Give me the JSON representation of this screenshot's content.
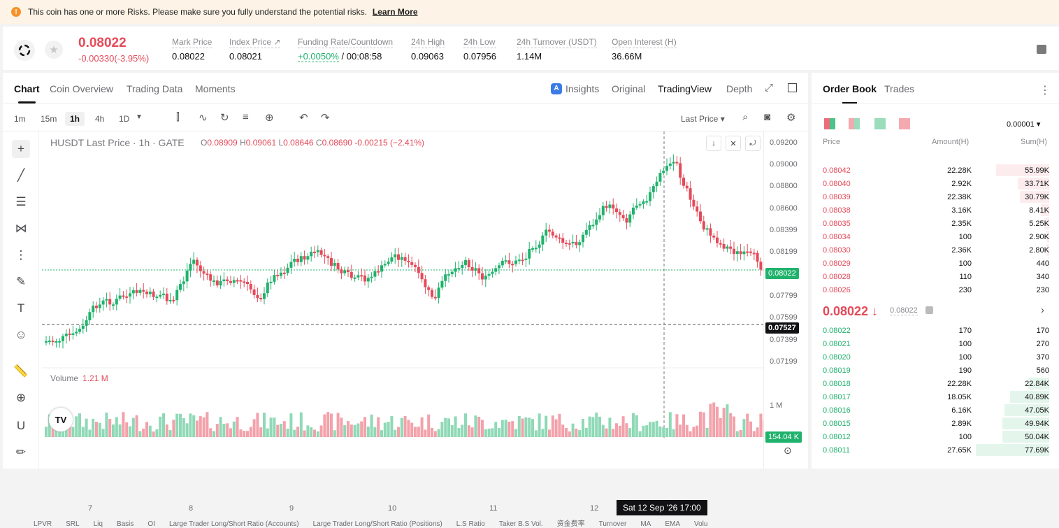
{
  "risk_banner": {
    "text": "This coin has one or more Risks. Please make sure you fully understand the potential risks.",
    "link": "Learn More"
  },
  "ticker": {
    "last_price": "0.08022",
    "change": "-0.00330(-3.95%)",
    "stats": [
      {
        "label": "Mark Price",
        "value": "0.08022"
      },
      {
        "label": "Index Price ↗",
        "value": "0.08021"
      },
      {
        "label": "Funding Rate/Countdown",
        "value": "+0.0050%",
        "value2": " / 00:08:58"
      },
      {
        "label": "24h High",
        "value": "0.09063"
      },
      {
        "label": "24h Low",
        "value": "0.07956"
      },
      {
        "label": "24h Turnover (USDT)",
        "value": "1.14M"
      },
      {
        "label": "Open Interest (H)",
        "value": "36.66M"
      }
    ]
  },
  "chart_tabs": [
    "Chart",
    "Coin Overview",
    "Trading Data",
    "Moments"
  ],
  "view_tabs": {
    "insights": "Insights",
    "original": "Original",
    "tradingview": "TradingView",
    "depth": "Depth"
  },
  "intervals": [
    "1m",
    "15m",
    "1h",
    "4h",
    "1D"
  ],
  "toolbar": {
    "price_type": "Last Price ▾"
  },
  "legend": {
    "title": "HUSDT Last Price · 1h · GATE",
    "o": "0.08909",
    "h": "0.09061",
    "l": "0.08646",
    "c": "0.08690",
    "chg": "-0.00215 (−2.41%)"
  },
  "y_axis": {
    "labels": [
      "0.09200",
      "0.09000",
      "0.08800",
      "0.08600",
      "0.08399",
      "0.08199",
      "0.07799",
      "0.07599",
      "0.07399",
      "0.07199"
    ],
    "last": "0.08022",
    "cross": "0.07527",
    "vol_label": "1 M",
    "vol_tag": "154.04 K"
  },
  "volume": {
    "label": "Volume",
    "value": "1.21 M"
  },
  "x_axis": {
    "labels": [
      "7",
      "8",
      "9",
      "10",
      "11",
      "12"
    ],
    "cross": "Sat 12 Sep '26   17:00"
  },
  "bottom_indicators": [
    "LPVR",
    "SRL",
    "Liq",
    "Basis",
    "OI",
    "Large Trader Long/Short Ratio (Accounts)",
    "Large Trader Long/Short Ratio (Positions)",
    "L.S Ratio",
    "Taker B.S Vol.",
    "资金费率",
    "Turnover",
    "MA",
    "EMA",
    "Volu"
  ],
  "orderbook": {
    "tabs": [
      "Order Book",
      "Trades"
    ],
    "precision": "0.00001 ▾",
    "headers": [
      "Price",
      "Amount(H)",
      "Sum(H)"
    ],
    "asks": [
      {
        "p": "0.08042",
        "a": "22.28K",
        "s": "55.99K",
        "d": 0.72
      },
      {
        "p": "0.08040",
        "a": "2.92K",
        "s": "33.71K",
        "d": 0.43
      },
      {
        "p": "0.08039",
        "a": "22.38K",
        "s": "30.79K",
        "d": 0.4
      },
      {
        "p": "0.08038",
        "a": "3.16K",
        "s": "8.41K",
        "d": 0.11
      },
      {
        "p": "0.08035",
        "a": "2.35K",
        "s": "5.25K",
        "d": 0.07
      },
      {
        "p": "0.08034",
        "a": "100",
        "s": "2.90K",
        "d": 0.04
      },
      {
        "p": "0.08030",
        "a": "2.36K",
        "s": "2.80K",
        "d": 0.04
      },
      {
        "p": "0.08029",
        "a": "100",
        "s": "440",
        "d": 0.01
      },
      {
        "p": "0.08028",
        "a": "110",
        "s": "340",
        "d": 0.0
      },
      {
        "p": "0.08026",
        "a": "230",
        "s": "230",
        "d": 0.0
      }
    ],
    "mid": "0.08022 ↓",
    "mark": "0.08022",
    "bids": [
      {
        "p": "0.08022",
        "a": "170",
        "s": "170",
        "d": 0
      },
      {
        "p": "0.08021",
        "a": "100",
        "s": "270",
        "d": 0
      },
      {
        "p": "0.08020",
        "a": "100",
        "s": "370",
        "d": 0
      },
      {
        "p": "0.08019",
        "a": "190",
        "s": "560",
        "d": 0.01
      },
      {
        "p": "0.08018",
        "a": "22.28K",
        "s": "22.84K",
        "d": 0.29
      },
      {
        "p": "0.08017",
        "a": "18.05K",
        "s": "40.89K",
        "d": 0.53
      },
      {
        "p": "0.08016",
        "a": "6.16K",
        "s": "47.05K",
        "d": 0.61
      },
      {
        "p": "0.08015",
        "a": "2.89K",
        "s": "49.94K",
        "d": 0.64
      },
      {
        "p": "0.08012",
        "a": "100",
        "s": "50.04K",
        "d": 0.64
      },
      {
        "p": "0.08011",
        "a": "27.65K",
        "s": "77.69K",
        "d": 1.0
      }
    ]
  }
}
